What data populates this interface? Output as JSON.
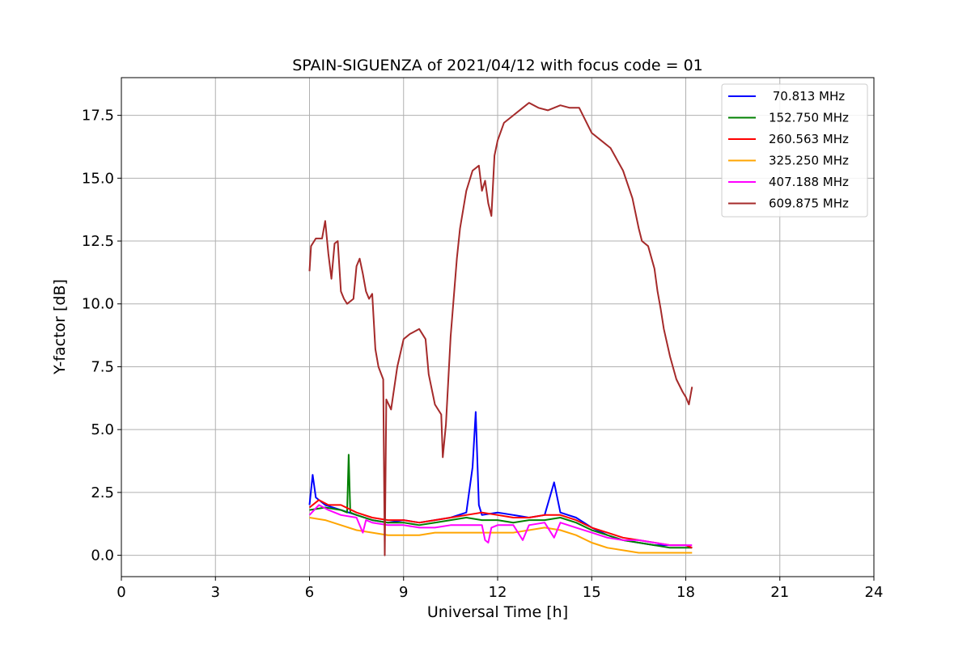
{
  "chart_data": {
    "type": "line",
    "title": "SPAIN-SIGUENZA of 2021/04/12 with focus code = 01",
    "xlabel": "Universal Time [h]",
    "ylabel": "Y-factor [dB]",
    "xlim": [
      0,
      24
    ],
    "ylim": [
      -0.85,
      19.0
    ],
    "xticks": [
      0,
      3,
      6,
      9,
      12,
      15,
      18,
      21,
      24
    ],
    "xtick_labels": [
      "0",
      "3",
      "6",
      "9",
      "12",
      "15",
      "18",
      "21",
      "24"
    ],
    "yticks": [
      0.0,
      2.5,
      5.0,
      7.5,
      10.0,
      12.5,
      15.0,
      17.5
    ],
    "ytick_labels": [
      "0.0",
      "2.5",
      "5.0",
      "7.5",
      "10.0",
      "12.5",
      "15.0",
      "17.5"
    ],
    "grid": true,
    "legend_position": "top-right",
    "series": [
      {
        "name": " 70.813 MHz",
        "color": "#0000ff",
        "x": [
          6.0,
          6.1,
          6.2,
          6.5,
          7.0,
          7.5,
          8.0,
          8.5,
          9.0,
          9.5,
          10.0,
          10.5,
          11.0,
          11.2,
          11.3,
          11.4,
          11.5,
          12.0,
          12.5,
          13.0,
          13.5,
          13.8,
          14.0,
          14.5,
          15.0,
          15.5,
          16.0,
          16.5,
          17.0,
          17.5,
          18.0,
          18.2
        ],
        "y": [
          2.0,
          3.2,
          2.3,
          2.0,
          1.8,
          1.6,
          1.4,
          1.3,
          1.4,
          1.3,
          1.4,
          1.5,
          1.7,
          3.5,
          5.7,
          2.0,
          1.6,
          1.7,
          1.6,
          1.5,
          1.6,
          2.9,
          1.7,
          1.5,
          1.1,
          0.8,
          0.6,
          0.5,
          0.4,
          0.4,
          0.4,
          0.3
        ]
      },
      {
        "name": "152.750 MHz",
        "color": "#008000",
        "x": [
          6.0,
          6.5,
          7.0,
          7.2,
          7.25,
          7.3,
          7.5,
          8.0,
          8.5,
          9.0,
          9.5,
          10.0,
          10.5,
          11.0,
          11.5,
          12.0,
          12.5,
          13.0,
          13.5,
          14.0,
          14.5,
          15.0,
          15.5,
          16.0,
          16.5,
          17.0,
          17.5,
          18.0,
          18.2
        ],
        "y": [
          1.8,
          1.9,
          1.8,
          1.7,
          4.0,
          1.7,
          1.6,
          1.4,
          1.3,
          1.3,
          1.2,
          1.3,
          1.4,
          1.5,
          1.4,
          1.4,
          1.3,
          1.4,
          1.4,
          1.5,
          1.3,
          1.0,
          0.8,
          0.6,
          0.5,
          0.4,
          0.3,
          0.3,
          0.3
        ]
      },
      {
        "name": "260.563 MHz",
        "color": "#ff0000",
        "x": [
          6.0,
          6.3,
          6.6,
          7.0,
          7.5,
          8.0,
          8.5,
          9.0,
          9.5,
          10.0,
          10.5,
          11.0,
          11.5,
          12.0,
          12.5,
          13.0,
          13.5,
          14.0,
          14.5,
          15.0,
          15.5,
          16.0,
          16.5,
          17.0,
          17.5,
          18.0,
          18.2
        ],
        "y": [
          1.9,
          2.2,
          2.0,
          2.0,
          1.7,
          1.5,
          1.4,
          1.4,
          1.3,
          1.4,
          1.5,
          1.6,
          1.7,
          1.6,
          1.5,
          1.5,
          1.6,
          1.6,
          1.4,
          1.1,
          0.9,
          0.7,
          0.6,
          0.5,
          0.4,
          0.4,
          0.3
        ]
      },
      {
        "name": "325.250 MHz",
        "color": "#ffa500",
        "x": [
          6.0,
          6.5,
          7.0,
          7.5,
          8.0,
          8.5,
          9.0,
          9.5,
          10.0,
          10.5,
          11.0,
          11.5,
          12.0,
          12.5,
          13.0,
          13.5,
          14.0,
          14.5,
          15.0,
          15.5,
          16.0,
          16.5,
          17.0,
          17.5,
          18.0,
          18.2
        ],
        "y": [
          1.5,
          1.4,
          1.2,
          1.0,
          0.9,
          0.8,
          0.8,
          0.8,
          0.9,
          0.9,
          0.9,
          0.9,
          0.9,
          0.9,
          1.0,
          1.1,
          1.0,
          0.8,
          0.5,
          0.3,
          0.2,
          0.1,
          0.1,
          0.1,
          0.1,
          0.1
        ]
      },
      {
        "name": "407.188 MHz",
        "color": "#ff00ff",
        "x": [
          6.0,
          6.3,
          6.6,
          7.0,
          7.5,
          7.7,
          7.8,
          8.0,
          8.5,
          9.0,
          9.5,
          10.0,
          10.5,
          11.0,
          11.5,
          11.6,
          11.7,
          11.8,
          12.0,
          12.5,
          12.8,
          13.0,
          13.5,
          13.8,
          14.0,
          14.5,
          15.0,
          15.5,
          16.0,
          16.5,
          17.0,
          17.5,
          18.0,
          18.2
        ],
        "y": [
          1.6,
          2.0,
          1.8,
          1.6,
          1.5,
          0.9,
          1.4,
          1.3,
          1.2,
          1.2,
          1.1,
          1.1,
          1.2,
          1.2,
          1.2,
          0.6,
          0.5,
          1.1,
          1.2,
          1.2,
          0.6,
          1.2,
          1.3,
          0.7,
          1.3,
          1.1,
          0.9,
          0.7,
          0.6,
          0.6,
          0.5,
          0.4,
          0.4,
          0.4
        ]
      },
      {
        "name": "609.875 MHz",
        "color": "#a52a2a",
        "x": [
          6.0,
          6.05,
          6.2,
          6.4,
          6.5,
          6.6,
          6.7,
          6.8,
          6.9,
          7.0,
          7.1,
          7.2,
          7.4,
          7.5,
          7.6,
          7.7,
          7.8,
          7.9,
          8.0,
          8.1,
          8.2,
          8.35,
          8.4,
          8.45,
          8.6,
          8.8,
          9.0,
          9.2,
          9.5,
          9.7,
          9.8,
          10.0,
          10.2,
          10.25,
          10.35,
          10.5,
          10.7,
          10.8,
          11.0,
          11.2,
          11.4,
          11.5,
          11.6,
          11.7,
          11.8,
          11.9,
          12.0,
          12.2,
          12.5,
          12.8,
          13.0,
          13.3,
          13.6,
          14.0,
          14.3,
          14.6,
          15.0,
          15.3,
          15.6,
          16.0,
          16.3,
          16.5,
          16.6,
          16.8,
          17.0,
          17.1,
          17.2,
          17.3,
          17.5,
          17.7,
          17.9,
          18.0,
          18.1,
          18.2
        ],
        "y": [
          11.3,
          12.3,
          12.6,
          12.6,
          13.3,
          12.0,
          11.0,
          12.4,
          12.5,
          10.5,
          10.2,
          10.0,
          10.2,
          11.5,
          11.8,
          11.2,
          10.5,
          10.2,
          10.4,
          8.2,
          7.5,
          7.0,
          0.0,
          6.2,
          5.8,
          7.5,
          8.6,
          8.8,
          9.0,
          8.6,
          7.2,
          6.0,
          5.6,
          3.9,
          5.2,
          8.7,
          11.8,
          13.0,
          14.5,
          15.3,
          15.5,
          14.5,
          14.9,
          14.0,
          13.5,
          15.9,
          16.5,
          17.2,
          17.5,
          17.8,
          18.0,
          17.8,
          17.7,
          17.9,
          17.8,
          17.8,
          16.8,
          16.5,
          16.2,
          15.3,
          14.2,
          13.0,
          12.5,
          12.3,
          11.4,
          10.5,
          9.8,
          9.0,
          7.9,
          7.0,
          6.5,
          6.3,
          6.0,
          6.7
        ]
      }
    ]
  }
}
